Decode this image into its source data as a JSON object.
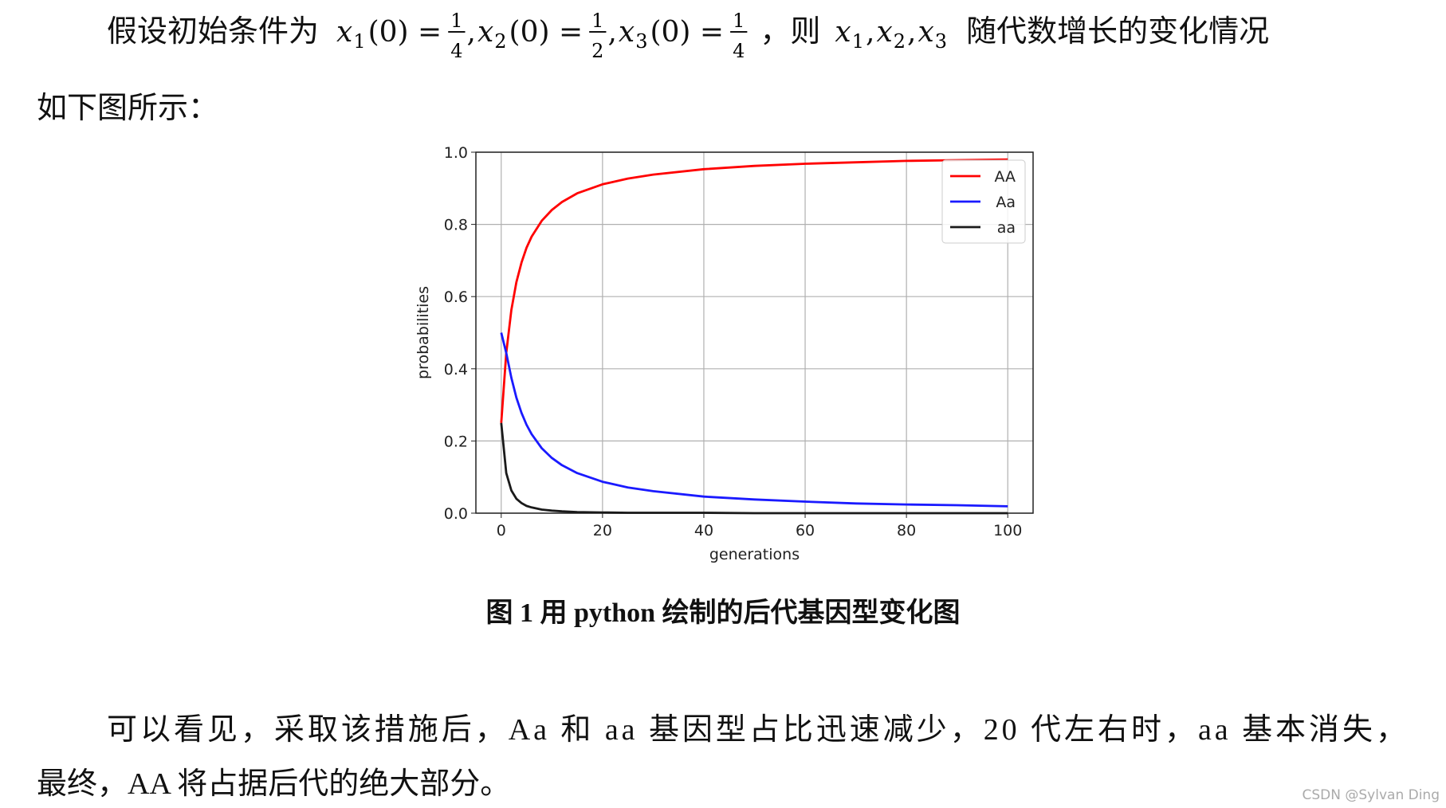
{
  "intro": {
    "line1_start": "假设初始条件为",
    "conditions": [
      {
        "var": "x",
        "sub": "1",
        "arg": "(0) =",
        "num": "1",
        "den": "4"
      },
      {
        "var": "x",
        "sub": "2",
        "arg": "(0) =",
        "num": "1",
        "den": "2"
      },
      {
        "var": "x",
        "sub": "3",
        "arg": "(0) =",
        "num": "1",
        "den": "4"
      }
    ],
    "separator": ",",
    "then": "，则",
    "vars": [
      {
        "var": "x",
        "sub": "1"
      },
      {
        "var": "x",
        "sub": "2"
      },
      {
        "var": "x",
        "sub": "3"
      }
    ],
    "line1_end": "随代数增长的变化情况",
    "line2": "如下图所示："
  },
  "chart_data": {
    "type": "line",
    "xlabel": "generations",
    "ylabel": "probabilities",
    "x": [
      0,
      1,
      2,
      3,
      4,
      5,
      6,
      8,
      10,
      12,
      15,
      20,
      25,
      30,
      40,
      50,
      60,
      70,
      80,
      90,
      100
    ],
    "series": [
      {
        "name": "AA",
        "color": "#ff0000",
        "values": [
          0.25,
          0.444,
          0.563,
          0.64,
          0.694,
          0.735,
          0.766,
          0.81,
          0.84,
          0.862,
          0.886,
          0.911,
          0.927,
          0.938,
          0.953,
          0.962,
          0.968,
          0.972,
          0.976,
          0.978,
          0.98
        ]
      },
      {
        "name": "Aa",
        "color": "#1a1aff",
        "values": [
          0.5,
          0.444,
          0.375,
          0.32,
          0.278,
          0.245,
          0.219,
          0.18,
          0.153,
          0.133,
          0.111,
          0.087,
          0.071,
          0.061,
          0.046,
          0.038,
          0.032,
          0.027,
          0.024,
          0.022,
          0.019
        ]
      },
      {
        "name": "aa",
        "color": "#1a1a1a",
        "values": [
          0.25,
          0.111,
          0.063,
          0.04,
          0.028,
          0.02,
          0.016,
          0.01,
          0.007,
          0.005,
          0.003,
          0.002,
          0.001,
          0.001,
          0.001,
          0,
          0,
          0,
          0,
          0,
          0
        ]
      }
    ],
    "xlim": [
      -5,
      105
    ],
    "ylim": [
      0,
      1
    ],
    "xticks": [
      0,
      20,
      40,
      60,
      80,
      100
    ],
    "yticks": [
      {
        "value": 0,
        "label": "0.0"
      },
      0.2,
      0.4,
      0.6,
      0.8,
      {
        "value": 1,
        "label": "1.0"
      }
    ],
    "grid": true,
    "legend": "upper right"
  },
  "caption": "图 1  用 python 绘制的后代基因型变化图",
  "conclusion": {
    "line1": "可以看见，采取该措施后，Aa 和 aa 基因型占比迅速减少，20 代左右时，aa 基本消失，",
    "line2": "最终，AA 将占据后代的绝大部分。"
  },
  "watermark": "CSDN @Sylvan Ding"
}
